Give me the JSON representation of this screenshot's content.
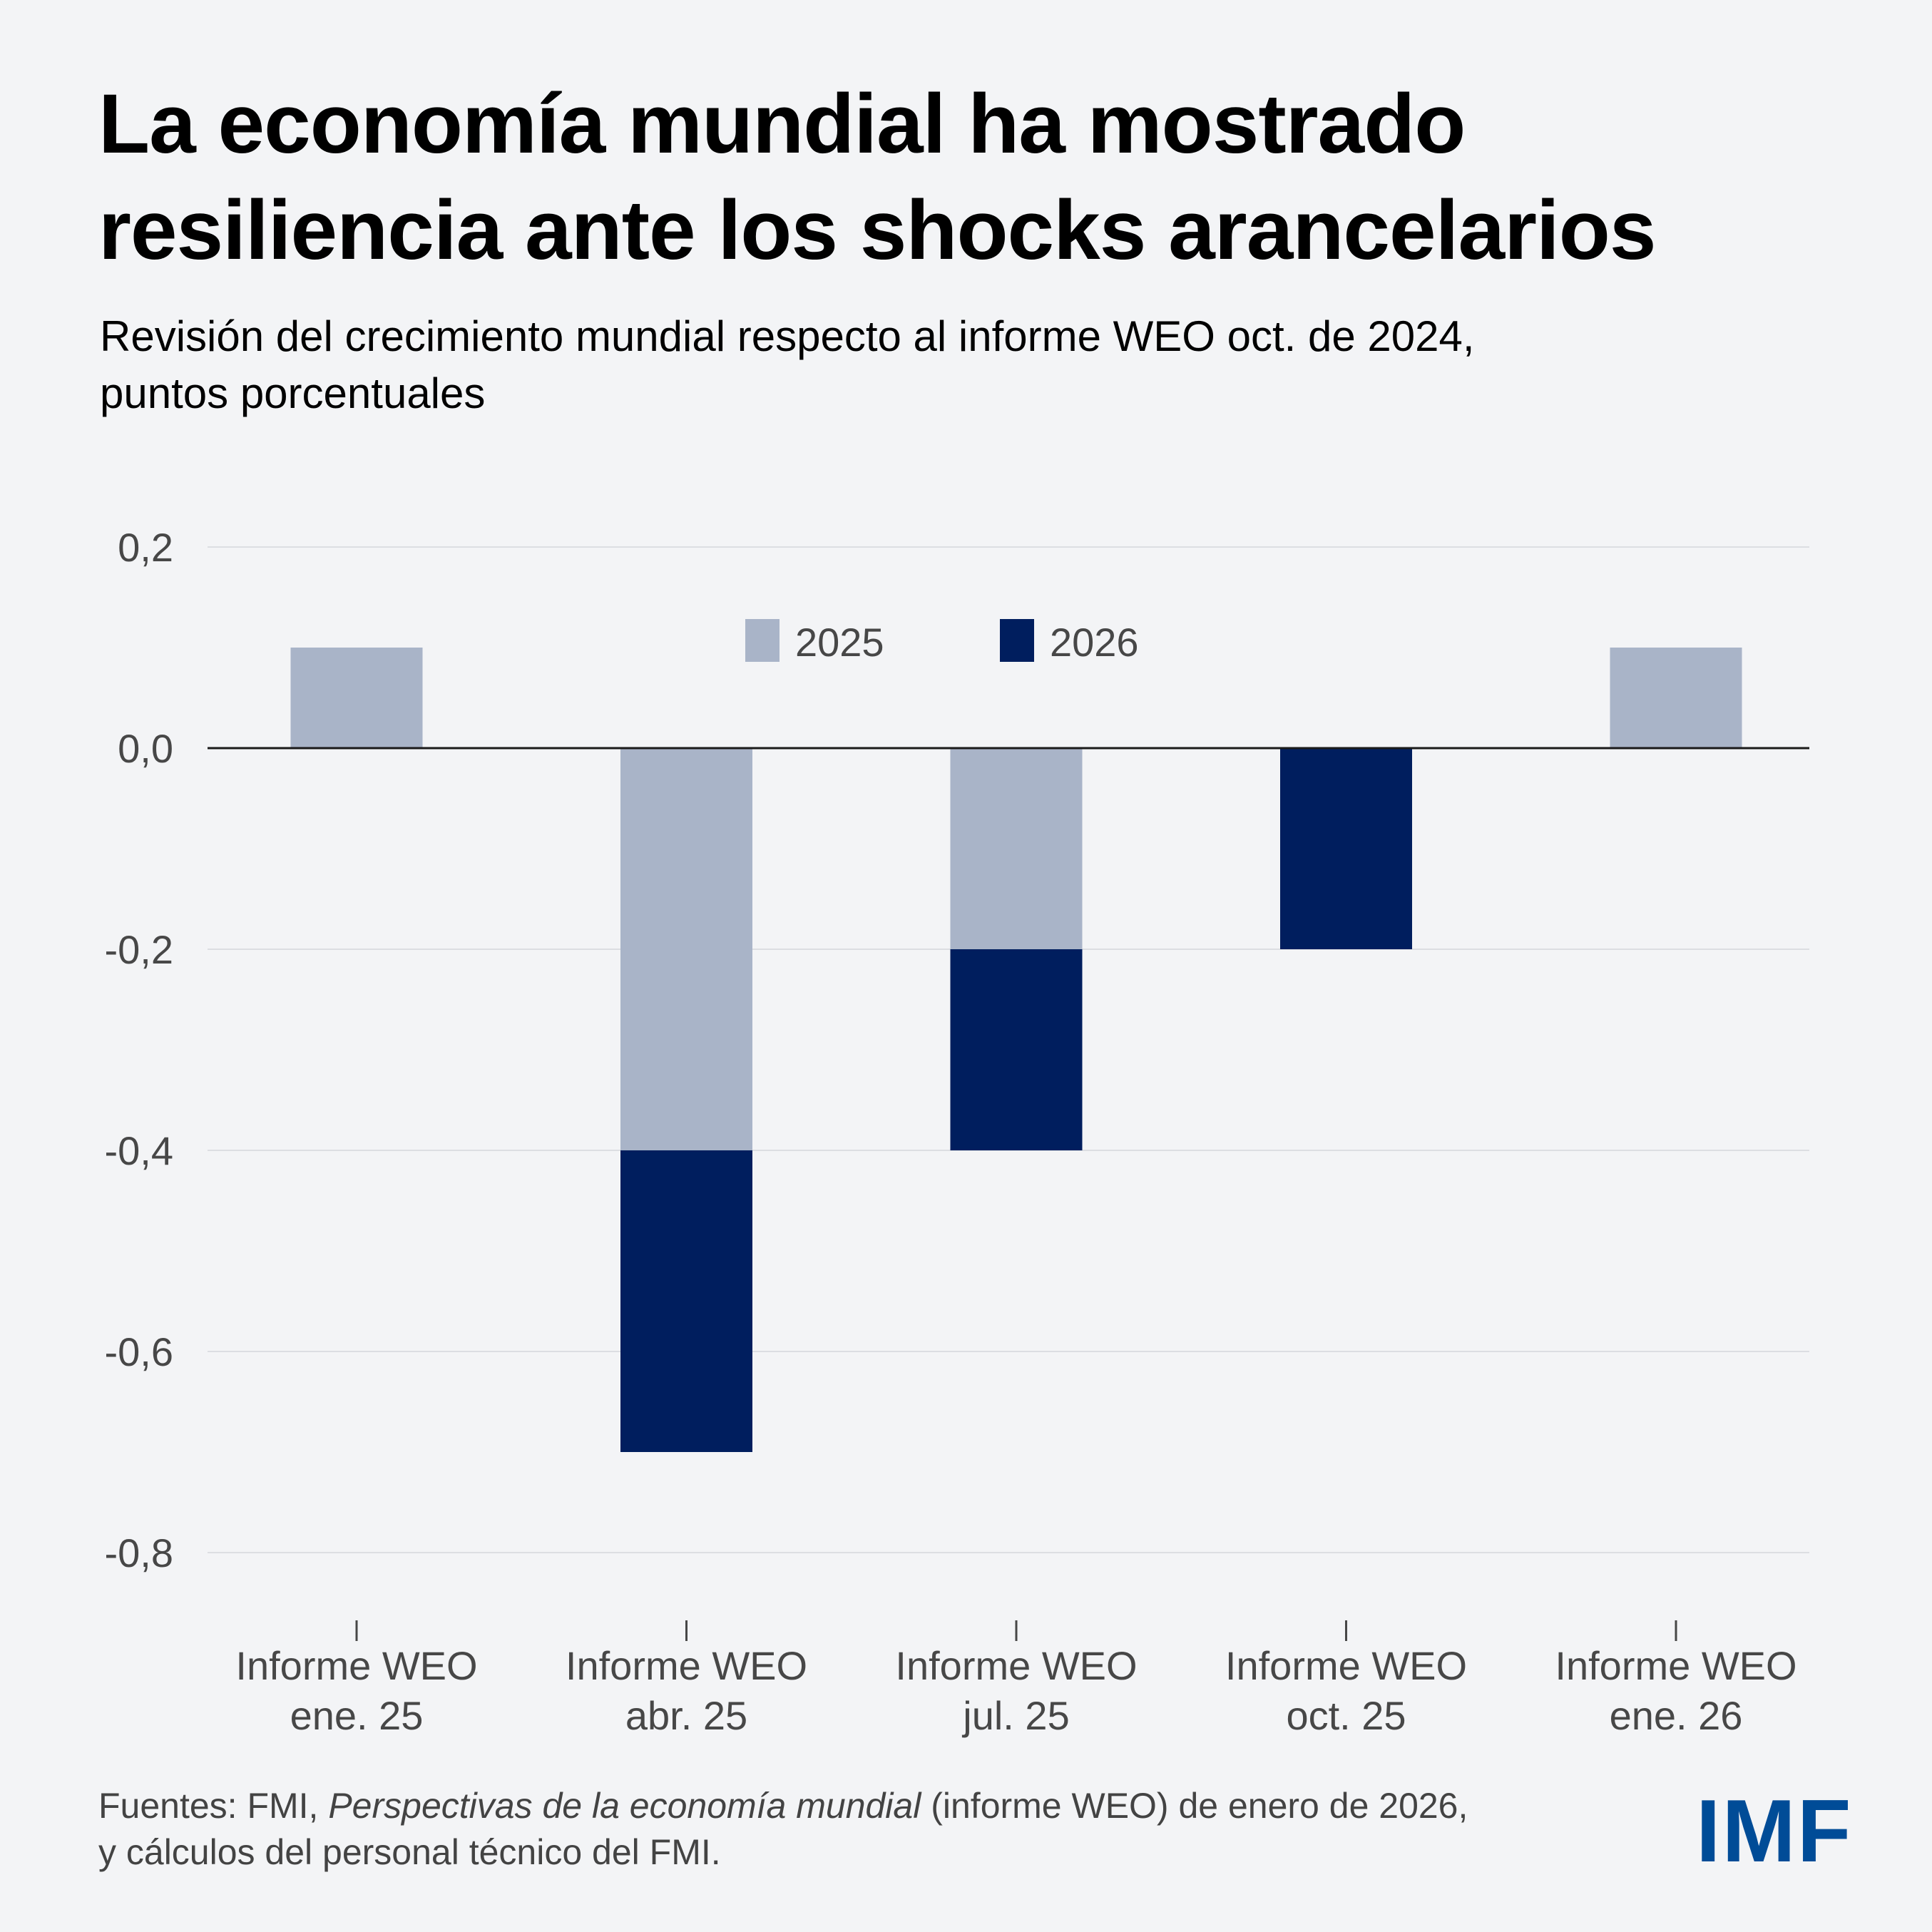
{
  "header": {
    "title_lines": [
      "La economía mundial ha mostrado",
      "resiliencia ante los shocks arancelarios"
    ],
    "subtitle_lines": [
      "Revisión del crecimiento mundial respecto al informe WEO oct. de 2024,",
      "puntos porcentuales"
    ]
  },
  "chart_data": {
    "type": "bar",
    "stacked": true,
    "title": "La economía mundial ha mostrado resiliencia ante los shocks arancelarios",
    "subtitle": "Revisión del crecimiento mundial respecto al informe WEO oct. de 2024, puntos porcentuales",
    "xlabel": "",
    "ylabel": "",
    "categories": [
      [
        "Informe WEO",
        "ene. 25"
      ],
      [
        "Informe WEO",
        "abr. 25"
      ],
      [
        "Informe WEO",
        "jul. 25"
      ],
      [
        "Informe WEO",
        "oct. 25"
      ],
      [
        "Informe WEO",
        "ene. 26"
      ]
    ],
    "series": [
      {
        "name": "2025",
        "color": "#A9B4C8",
        "values": [
          0.1,
          -0.4,
          -0.2,
          0.0,
          0.1
        ]
      },
      {
        "name": "2026",
        "color": "#001E5E",
        "values": [
          0.0,
          -0.3,
          -0.2,
          -0.2,
          0.0
        ]
      }
    ],
    "ylim": [
      -0.8,
      0.2
    ],
    "yticks": [
      0.2,
      0.0,
      -0.2,
      -0.4,
      -0.6,
      -0.8
    ],
    "ytick_labels": [
      "0,2",
      "0,0",
      "-0,2",
      "-0,4",
      "-0,6",
      "-0,8"
    ],
    "grid": true,
    "legend": {
      "position": "top-center",
      "entries": [
        "2025",
        "2026"
      ]
    }
  },
  "footer": {
    "source_prefix": "Fuentes: FMI, ",
    "source_title": "Perspectivas de la economía mundial",
    "source_suffix": " (informe WEO) de enero de 2026,",
    "source_line2": "y cálculos del personal técnico del FMI."
  },
  "logo": {
    "text": "IMF",
    "color": "#004C97"
  }
}
